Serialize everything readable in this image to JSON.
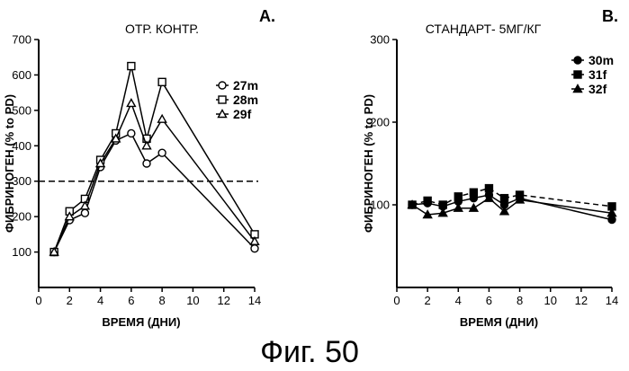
{
  "figure_caption": "Фиг. 50",
  "chart_data": [
    {
      "type": "line",
      "panel_label": "A.",
      "title": "ОТР. КОНТР.",
      "xlabel": "ВРЕМЯ (ДНИ)",
      "ylabel": "ФИБРИНОГЕН (% to PD)",
      "xlim": [
        0,
        14
      ],
      "ylim": [
        0,
        700
      ],
      "xticks": [
        "0",
        "2",
        "4",
        "6",
        "8",
        "10",
        "12",
        "14"
      ],
      "yticks": [
        "100",
        "200",
        "300",
        "400",
        "500",
        "600",
        "700"
      ],
      "reference_line": {
        "y": 300,
        "style": "dashed"
      },
      "legend_position": "top-right",
      "x": [
        1,
        2,
        3,
        4,
        5,
        6,
        7,
        8,
        14
      ],
      "series": [
        {
          "name": "27m",
          "marker": "circle-open",
          "values": [
            100,
            190,
            210,
            340,
            415,
            435,
            350,
            380,
            110
          ]
        },
        {
          "name": "28m",
          "marker": "square-open",
          "values": [
            100,
            215,
            250,
            360,
            435,
            625,
            420,
            580,
            150
          ]
        },
        {
          "name": "29f",
          "marker": "triangle-open",
          "values": [
            100,
            200,
            230,
            350,
            420,
            520,
            400,
            475,
            130
          ]
        }
      ]
    },
    {
      "type": "line",
      "panel_label": "B.",
      "title": "СТАНДАРТ- 5МГ/КГ",
      "xlabel": "ВРЕМЯ (ДНИ)",
      "ylabel": "ФИБРИНОГЕН (% to PD)",
      "xlim": [
        0,
        14
      ],
      "ylim": [
        0,
        300
      ],
      "xticks": [
        "0",
        "2",
        "4",
        "6",
        "8",
        "10",
        "12",
        "14"
      ],
      "yticks": [
        "100",
        "200",
        "300"
      ],
      "legend_position": "top-right",
      "x": [
        1,
        2,
        3,
        4,
        5,
        6,
        7,
        8,
        14
      ],
      "series": [
        {
          "name": "30m",
          "marker": "circle-filled",
          "dash": "none",
          "values": [
            100,
            102,
            98,
            104,
            108,
            112,
            100,
            108,
            82
          ]
        },
        {
          "name": "31f",
          "marker": "square-filled",
          "dash": "6,4",
          "values": [
            100,
            105,
            100,
            110,
            115,
            120,
            108,
            112,
            98
          ]
        },
        {
          "name": "32f",
          "marker": "triangle-filled",
          "dash": "none",
          "values": [
            100,
            88,
            90,
            96,
            96,
            108,
            92,
            106,
            90
          ]
        }
      ]
    }
  ]
}
